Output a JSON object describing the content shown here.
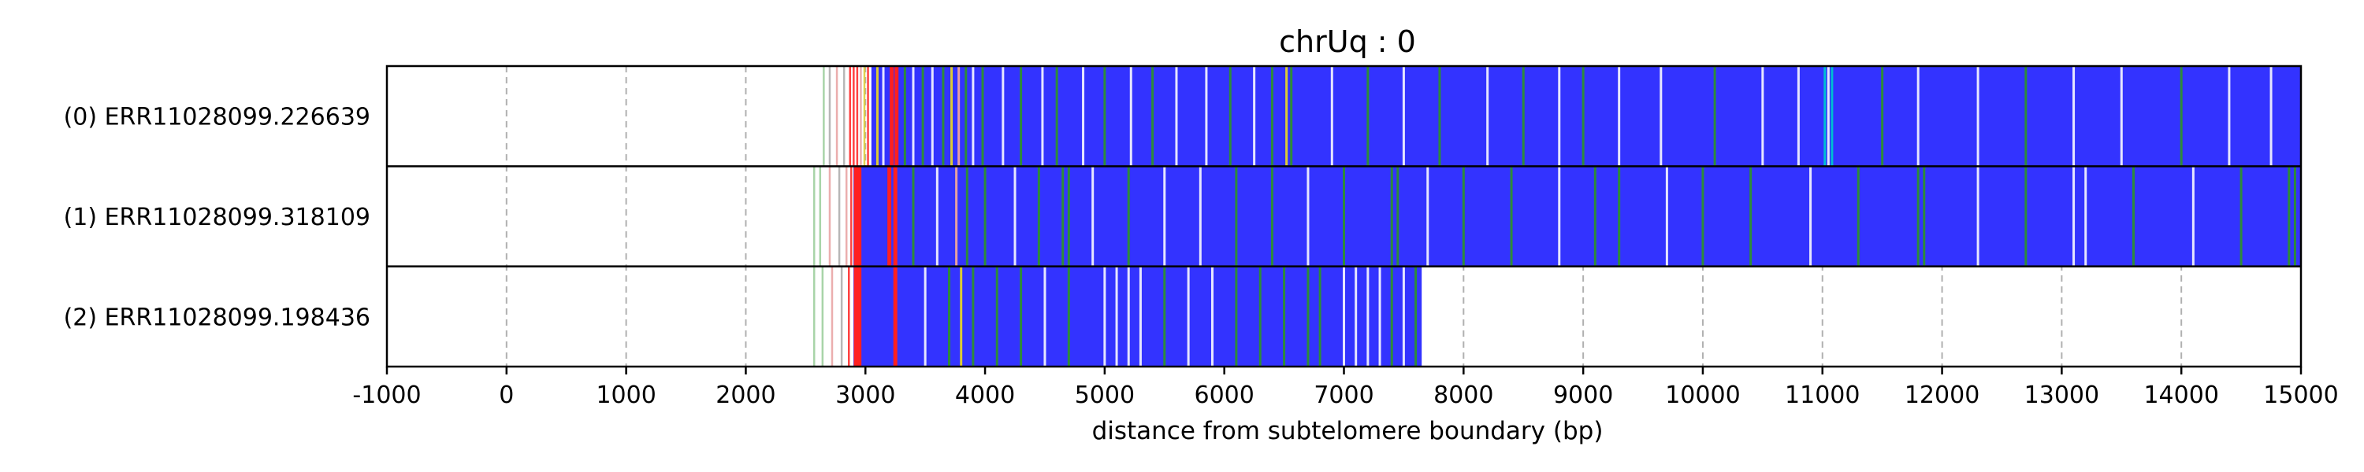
{
  "chart_data": {
    "type": "heatmap",
    "title": "chrUq : 0",
    "xlabel": "distance from subtelomere boundary (bp)",
    "xlim": [
      -1000,
      15000
    ],
    "xticks": [
      -1000,
      0,
      1000,
      2000,
      3000,
      4000,
      5000,
      6000,
      7000,
      8000,
      9000,
      10000,
      11000,
      12000,
      13000,
      14000,
      15000
    ],
    "grid": true,
    "colors": {
      "main": "#3333ff",
      "green": "#2e8b3a",
      "light": "#e6e6ff",
      "cyan": "#00bcd4",
      "red": "#ff2020",
      "pink": "#e8a0a0",
      "yellow": "#ddcc33",
      "lightgreen": "#99cc99",
      "gray": "#aaaaaa"
    },
    "reads": [
      {
        "label": "(0) ERR11028099.226639",
        "start": 3050,
        "end": 15000,
        "pre_marks": [
          {
            "x": 2650,
            "c": "lightgreen"
          },
          {
            "x": 2700,
            "c": "gray"
          },
          {
            "x": 2760,
            "c": "pink"
          },
          {
            "x": 2820,
            "c": "gray"
          },
          {
            "x": 2870,
            "c": "red"
          },
          {
            "x": 2900,
            "c": "red"
          },
          {
            "x": 2930,
            "c": "red"
          },
          {
            "x": 2960,
            "c": "pink"
          },
          {
            "x": 2990,
            "c": "yellow"
          },
          {
            "x": 3020,
            "c": "red"
          }
        ],
        "marks": [
          {
            "x": 3100,
            "c": "yellow"
          },
          {
            "x": 3150,
            "c": "light"
          },
          {
            "x": 3220,
            "c": "red"
          },
          {
            "x": 3260,
            "c": "red"
          },
          {
            "x": 3330,
            "c": "green"
          },
          {
            "x": 3400,
            "c": "light"
          },
          {
            "x": 3480,
            "c": "green"
          },
          {
            "x": 3560,
            "c": "light"
          },
          {
            "x": 3650,
            "c": "green"
          },
          {
            "x": 3720,
            "c": "yellow"
          },
          {
            "x": 3780,
            "c": "pink"
          },
          {
            "x": 3840,
            "c": "green"
          },
          {
            "x": 3900,
            "c": "light"
          },
          {
            "x": 3980,
            "c": "green"
          },
          {
            "x": 4150,
            "c": "light"
          },
          {
            "x": 4300,
            "c": "green"
          },
          {
            "x": 4480,
            "c": "light"
          },
          {
            "x": 4600,
            "c": "green"
          },
          {
            "x": 4820,
            "c": "light"
          },
          {
            "x": 5000,
            "c": "green"
          },
          {
            "x": 5220,
            "c": "light"
          },
          {
            "x": 5400,
            "c": "green"
          },
          {
            "x": 5600,
            "c": "light"
          },
          {
            "x": 5850,
            "c": "light"
          },
          {
            "x": 6050,
            "c": "green"
          },
          {
            "x": 6250,
            "c": "light"
          },
          {
            "x": 6400,
            "c": "green"
          },
          {
            "x": 6520,
            "c": "yellow"
          },
          {
            "x": 6560,
            "c": "green"
          },
          {
            "x": 6900,
            "c": "light"
          },
          {
            "x": 7200,
            "c": "green"
          },
          {
            "x": 7500,
            "c": "light"
          },
          {
            "x": 7800,
            "c": "green"
          },
          {
            "x": 8200,
            "c": "light"
          },
          {
            "x": 8500,
            "c": "green"
          },
          {
            "x": 8800,
            "c": "light"
          },
          {
            "x": 9000,
            "c": "green"
          },
          {
            "x": 9300,
            "c": "light"
          },
          {
            "x": 9650,
            "c": "light"
          },
          {
            "x": 10100,
            "c": "green"
          },
          {
            "x": 10500,
            "c": "light"
          },
          {
            "x": 10800,
            "c": "light"
          },
          {
            "x": 11020,
            "c": "cyan"
          },
          {
            "x": 11050,
            "c": "light"
          },
          {
            "x": 11080,
            "c": "cyan"
          },
          {
            "x": 11500,
            "c": "green"
          },
          {
            "x": 11800,
            "c": "light"
          },
          {
            "x": 12300,
            "c": "light"
          },
          {
            "x": 12700,
            "c": "green"
          },
          {
            "x": 13100,
            "c": "light"
          },
          {
            "x": 13500,
            "c": "light"
          },
          {
            "x": 14000,
            "c": "green"
          },
          {
            "x": 14400,
            "c": "light"
          },
          {
            "x": 14750,
            "c": "light"
          }
        ]
      },
      {
        "label": "(1) ERR11028099.318109",
        "start": 2900,
        "end": 15000,
        "pre_marks": [
          {
            "x": 2570,
            "c": "lightgreen"
          },
          {
            "x": 2620,
            "c": "lightgreen"
          },
          {
            "x": 2700,
            "c": "pink"
          },
          {
            "x": 2780,
            "c": "gray"
          },
          {
            "x": 2840,
            "c": "pink"
          },
          {
            "x": 2880,
            "c": "red"
          }
        ],
        "marks": [
          {
            "x": 2920,
            "c": "red"
          },
          {
            "x": 2950,
            "c": "red"
          },
          {
            "x": 3200,
            "c": "red"
          },
          {
            "x": 3250,
            "c": "red"
          },
          {
            "x": 3400,
            "c": "green"
          },
          {
            "x": 3600,
            "c": "light"
          },
          {
            "x": 3760,
            "c": "pink"
          },
          {
            "x": 3850,
            "c": "green"
          },
          {
            "x": 4000,
            "c": "green"
          },
          {
            "x": 4250,
            "c": "light"
          },
          {
            "x": 4450,
            "c": "green"
          },
          {
            "x": 4650,
            "c": "green"
          },
          {
            "x": 4700,
            "c": "green"
          },
          {
            "x": 4900,
            "c": "light"
          },
          {
            "x": 5200,
            "c": "green"
          },
          {
            "x": 5500,
            "c": "light"
          },
          {
            "x": 5800,
            "c": "light"
          },
          {
            "x": 6100,
            "c": "green"
          },
          {
            "x": 6400,
            "c": "green"
          },
          {
            "x": 6700,
            "c": "light"
          },
          {
            "x": 7000,
            "c": "green"
          },
          {
            "x": 7400,
            "c": "green"
          },
          {
            "x": 7450,
            "c": "green"
          },
          {
            "x": 7700,
            "c": "light"
          },
          {
            "x": 8000,
            "c": "green"
          },
          {
            "x": 8400,
            "c": "green"
          },
          {
            "x": 8800,
            "c": "light"
          },
          {
            "x": 9100,
            "c": "green"
          },
          {
            "x": 9300,
            "c": "green"
          },
          {
            "x": 9700,
            "c": "light"
          },
          {
            "x": 10000,
            "c": "green"
          },
          {
            "x": 10400,
            "c": "green"
          },
          {
            "x": 10900,
            "c": "light"
          },
          {
            "x": 11300,
            "c": "green"
          },
          {
            "x": 11800,
            "c": "green"
          },
          {
            "x": 11850,
            "c": "green"
          },
          {
            "x": 12300,
            "c": "light"
          },
          {
            "x": 12700,
            "c": "green"
          },
          {
            "x": 13100,
            "c": "light"
          },
          {
            "x": 13200,
            "c": "light"
          },
          {
            "x": 13600,
            "c": "green"
          },
          {
            "x": 14100,
            "c": "light"
          },
          {
            "x": 14500,
            "c": "green"
          },
          {
            "x": 14900,
            "c": "green"
          },
          {
            "x": 14950,
            "c": "green"
          }
        ]
      },
      {
        "label": "(2) ERR11028099.198436",
        "start": 2900,
        "end": 7650,
        "pre_marks": [
          {
            "x": 2570,
            "c": "lightgreen"
          },
          {
            "x": 2640,
            "c": "lightgreen"
          },
          {
            "x": 2720,
            "c": "pink"
          },
          {
            "x": 2800,
            "c": "gray"
          },
          {
            "x": 2860,
            "c": "red"
          }
        ],
        "marks": [
          {
            "x": 2920,
            "c": "red"
          },
          {
            "x": 2950,
            "c": "red"
          },
          {
            "x": 3250,
            "c": "red"
          },
          {
            "x": 3500,
            "c": "light"
          },
          {
            "x": 3700,
            "c": "green"
          },
          {
            "x": 3800,
            "c": "yellow"
          },
          {
            "x": 3900,
            "c": "green"
          },
          {
            "x": 4100,
            "c": "green"
          },
          {
            "x": 4300,
            "c": "green"
          },
          {
            "x": 4500,
            "c": "light"
          },
          {
            "x": 4700,
            "c": "green"
          },
          {
            "x": 5000,
            "c": "light"
          },
          {
            "x": 5100,
            "c": "light"
          },
          {
            "x": 5200,
            "c": "light"
          },
          {
            "x": 5300,
            "c": "light"
          },
          {
            "x": 5500,
            "c": "green"
          },
          {
            "x": 5700,
            "c": "light"
          },
          {
            "x": 5900,
            "c": "light"
          },
          {
            "x": 6100,
            "c": "green"
          },
          {
            "x": 6300,
            "c": "green"
          },
          {
            "x": 6500,
            "c": "green"
          },
          {
            "x": 6700,
            "c": "green"
          },
          {
            "x": 6800,
            "c": "green"
          },
          {
            "x": 7000,
            "c": "light"
          },
          {
            "x": 7100,
            "c": "light"
          },
          {
            "x": 7200,
            "c": "light"
          },
          {
            "x": 7300,
            "c": "light"
          },
          {
            "x": 7400,
            "c": "green"
          },
          {
            "x": 7500,
            "c": "light"
          },
          {
            "x": 7600,
            "c": "green"
          }
        ]
      }
    ]
  }
}
